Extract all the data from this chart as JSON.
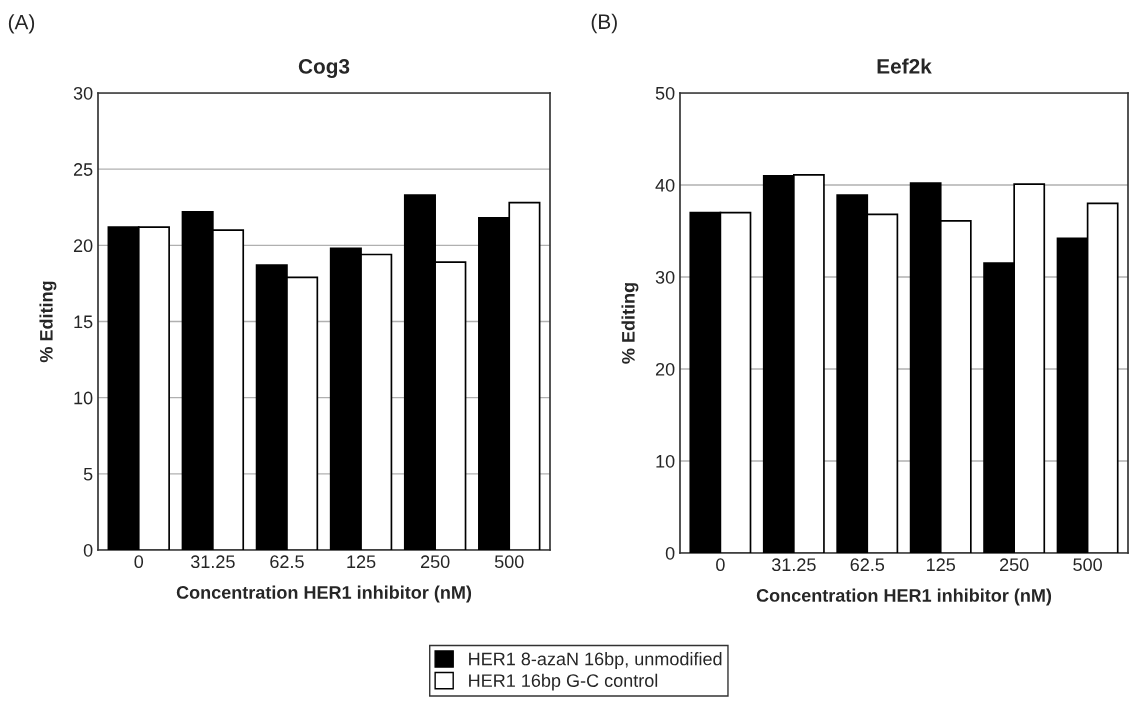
{
  "chart_data": [
    {
      "type": "bar",
      "title": "Cog3",
      "xlabel": "Concentration HER1 inhibitor (nM)",
      "ylabel": "% Editing",
      "annotations": [
        "(A)"
      ],
      "categories": [
        "0",
        "31.25",
        "62.5",
        "125",
        "250",
        "500"
      ],
      "series": [
        {
          "name": "HER1 8-azaN 16bp, unmodified",
          "color": "#000000",
          "values": [
            21.2,
            22.2,
            18.7,
            19.8,
            23.3,
            21.8
          ]
        },
        {
          "name": "HER1 16bp G-C control",
          "color": "#ffffff",
          "values": [
            21.2,
            21.0,
            17.9,
            19.4,
            18.9,
            22.8
          ]
        }
      ],
      "ylim": [
        0,
        30
      ],
      "yticks": [
        0,
        5,
        10,
        15,
        20,
        25,
        30
      ],
      "grid": "y",
      "legend": "bottom"
    },
    {
      "type": "bar",
      "title": "Eef2k",
      "xlabel": "Concentration HER1 inhibitor (nM)",
      "ylabel": "% Editing",
      "annotations": [
        "(B)"
      ],
      "categories": [
        "0",
        "31.25",
        "62.5",
        "125",
        "250",
        "500"
      ],
      "series": [
        {
          "color": "#000000",
          "values": [
            37.0,
            41.0,
            38.9,
            40.2,
            31.5,
            34.2
          ]
        },
        {
          "color": "#ffffff",
          "values": [
            37.0,
            41.1,
            36.8,
            36.1,
            40.1,
            38.0
          ]
        }
      ],
      "ylim": [
        0,
        50
      ],
      "yticks": [
        0,
        10,
        20,
        30,
        40,
        50
      ],
      "grid": "y"
    }
  ]
}
